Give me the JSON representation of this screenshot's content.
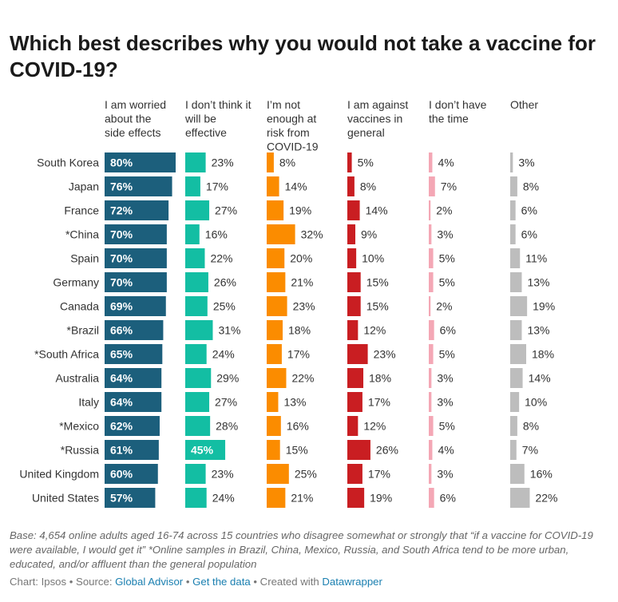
{
  "title": "Which best describes why you would not take a vaccine for COVID-19?",
  "chart_data": {
    "type": "bar",
    "title": "Which best describes why you would not take a vaccine for COVID-19?",
    "categories": [
      "South Korea",
      "Japan",
      "France",
      "*China",
      "Spain",
      "Germany",
      "Canada",
      "*Brazil",
      "*South Africa",
      "Australia",
      "Italy",
      "*Mexico",
      "*Russia",
      "United Kingdom",
      "United States"
    ],
    "series": [
      {
        "name": "I am worried about the side effects",
        "header_lines": [
          "I am worried",
          "about the",
          "side effects"
        ],
        "color": "#1c5f7c",
        "values": [
          80,
          76,
          72,
          70,
          70,
          70,
          69,
          66,
          65,
          64,
          64,
          62,
          61,
          60,
          57
        ]
      },
      {
        "name": "I don't think it will be effective",
        "header_lines": [
          "I don’t think it",
          "will be",
          "effective"
        ],
        "color": "#13bea3",
        "values": [
          23,
          17,
          27,
          16,
          22,
          26,
          25,
          31,
          24,
          29,
          27,
          28,
          45,
          23,
          24
        ]
      },
      {
        "name": "I'm not enough at risk from COVID-19",
        "header_lines": [
          "I’m not",
          "enough at",
          "risk from",
          "COVID-19"
        ],
        "color": "#fb8c00",
        "values": [
          8,
          14,
          19,
          32,
          20,
          21,
          23,
          18,
          17,
          22,
          13,
          16,
          15,
          25,
          21
        ]
      },
      {
        "name": "I am against vaccines in general",
        "header_lines": [
          "I am against",
          "vaccines in",
          "general"
        ],
        "color": "#c91e22",
        "values": [
          5,
          8,
          14,
          9,
          10,
          15,
          15,
          12,
          23,
          18,
          17,
          12,
          26,
          17,
          19
        ]
      },
      {
        "name": "I don't have the time",
        "header_lines": [
          "I don’t have",
          "the time"
        ],
        "color": "#f4a7b5",
        "values": [
          4,
          7,
          2,
          3,
          5,
          5,
          2,
          6,
          5,
          3,
          3,
          5,
          4,
          3,
          6
        ]
      },
      {
        "name": "Other",
        "header_lines": [
          "Other"
        ],
        "color": "#bdbdbd",
        "values": [
          3,
          8,
          6,
          6,
          11,
          13,
          19,
          13,
          18,
          14,
          10,
          8,
          7,
          16,
          22
        ]
      }
    ],
    "value_suffix": "%",
    "xlim": [
      0,
      80
    ],
    "grid": false,
    "legend": "column headers"
  },
  "notes": "Base: 4,654 online adults aged 16-74 across 15 countries who disagree somewhat or strongly that “if a vaccine for COVID-19 were available, I would get it” *Online samples in Brazil, China, Mexico, Russia, and South Africa tend to be more urban, educated, and/or affluent than the general population",
  "footer": {
    "chart_prefix": "Chart: Ipsos • Source: ",
    "source_link": "Global Advisor",
    "sep1": " • ",
    "data_link": "Get the data",
    "sep2": " • Created with ",
    "tool_link": "Datawrapper"
  }
}
